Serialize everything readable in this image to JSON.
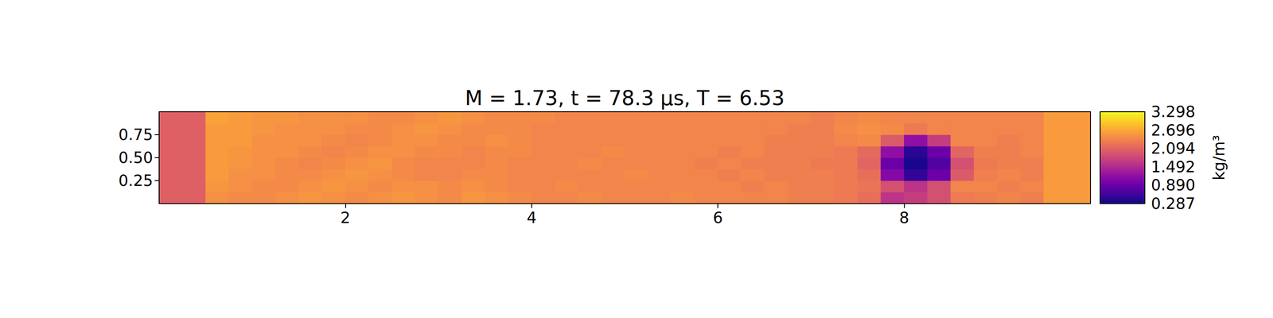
{
  "chart_data": {
    "type": "heatmap",
    "title": "M = 1.73, t = 78.3 μs, T = 6.53",
    "x": [
      0.125,
      0.375,
      0.625,
      0.875,
      1.125,
      1.375,
      1.625,
      1.875,
      2.125,
      2.375,
      2.625,
      2.875,
      3.125,
      3.375,
      3.625,
      3.875,
      4.125,
      4.375,
      4.625,
      4.875,
      5.125,
      5.375,
      5.625,
      5.875,
      6.125,
      6.375,
      6.625,
      6.875,
      7.125,
      7.375,
      7.625,
      7.875,
      8.125,
      8.375,
      8.625,
      8.875,
      9.125,
      9.375,
      9.625,
      9.875
    ],
    "y": [
      0.0625,
      0.1875,
      0.3125,
      0.4375,
      0.5625,
      0.6875,
      0.8125,
      0.9375
    ],
    "values": [
      [
        2.05,
        2.05,
        2.5,
        2.45,
        2.45,
        2.5,
        2.55,
        2.5,
        2.45,
        2.5,
        2.55,
        2.5,
        2.45,
        2.55,
        2.5,
        2.45,
        2.4,
        2.4,
        2.45,
        2.4,
        2.4,
        2.4,
        2.45,
        2.4,
        2.4,
        2.4,
        2.4,
        2.35,
        2.35,
        2.3,
        2.2,
        1.6,
        1.7,
        1.9,
        2.3,
        2.35,
        2.4,
        2.35,
        2.6,
        2.6
      ],
      [
        2.05,
        2.05,
        2.55,
        2.5,
        2.45,
        2.45,
        2.5,
        2.55,
        2.5,
        2.45,
        2.5,
        2.5,
        2.45,
        2.5,
        2.45,
        2.4,
        2.4,
        2.45,
        2.4,
        2.4,
        2.4,
        2.4,
        2.4,
        2.4,
        2.4,
        2.35,
        2.4,
        2.35,
        2.35,
        2.3,
        2.25,
        1.9,
        1.6,
        1.9,
        2.4,
        2.4,
        2.35,
        2.4,
        2.6,
        2.6
      ],
      [
        2.05,
        2.05,
        2.6,
        2.5,
        2.5,
        2.45,
        2.45,
        2.5,
        2.55,
        2.5,
        2.45,
        2.4,
        2.4,
        2.45,
        2.45,
        2.4,
        2.4,
        2.4,
        2.4,
        2.4,
        2.45,
        2.4,
        2.4,
        2.4,
        2.35,
        2.4,
        2.35,
        2.35,
        2.35,
        2.3,
        2.2,
        1.1,
        0.5,
        0.9,
        2.0,
        2.35,
        2.4,
        2.35,
        2.6,
        2.6
      ],
      [
        2.05,
        2.05,
        2.6,
        2.55,
        2.5,
        2.45,
        2.4,
        2.45,
        2.5,
        2.55,
        2.45,
        2.4,
        2.4,
        2.4,
        2.45,
        2.4,
        2.4,
        2.4,
        2.45,
        2.4,
        2.4,
        2.4,
        2.4,
        2.35,
        2.4,
        2.35,
        2.35,
        2.35,
        2.3,
        2.3,
        2.1,
        0.9,
        0.35,
        0.7,
        1.9,
        2.3,
        2.35,
        2.35,
        2.6,
        2.6
      ],
      [
        2.05,
        2.05,
        2.6,
        2.55,
        2.5,
        2.5,
        2.45,
        2.4,
        2.45,
        2.5,
        2.5,
        2.45,
        2.45,
        2.4,
        2.45,
        2.45,
        2.4,
        2.4,
        2.4,
        2.45,
        2.4,
        2.4,
        2.4,
        2.4,
        2.35,
        2.4,
        2.35,
        2.35,
        2.35,
        2.3,
        2.15,
        1.2,
        0.45,
        0.9,
        2.1,
        2.35,
        2.35,
        2.4,
        2.6,
        2.6
      ],
      [
        2.05,
        2.05,
        2.6,
        2.6,
        2.5,
        2.5,
        2.5,
        2.45,
        2.4,
        2.45,
        2.5,
        2.5,
        2.45,
        2.45,
        2.5,
        2.45,
        2.4,
        2.4,
        2.4,
        2.4,
        2.4,
        2.4,
        2.4,
        2.4,
        2.4,
        2.4,
        2.35,
        2.35,
        2.35,
        2.4,
        2.45,
        2.0,
        1.2,
        1.7,
        2.4,
        2.4,
        2.35,
        2.4,
        2.6,
        2.6
      ],
      [
        2.05,
        2.05,
        2.6,
        2.6,
        2.55,
        2.5,
        2.5,
        2.5,
        2.45,
        2.45,
        2.5,
        2.55,
        2.5,
        2.45,
        2.45,
        2.45,
        2.4,
        2.4,
        2.4,
        2.4,
        2.4,
        2.4,
        2.4,
        2.4,
        2.4,
        2.4,
        2.4,
        2.35,
        2.35,
        2.45,
        2.5,
        2.45,
        2.3,
        2.4,
        2.4,
        2.4,
        2.4,
        2.4,
        2.6,
        2.6
      ],
      [
        2.05,
        2.05,
        2.65,
        2.6,
        2.55,
        2.55,
        2.5,
        2.5,
        2.5,
        2.45,
        2.45,
        2.5,
        2.55,
        2.5,
        2.45,
        2.45,
        2.45,
        2.4,
        2.4,
        2.4,
        2.4,
        2.4,
        2.4,
        2.4,
        2.4,
        2.4,
        2.4,
        2.4,
        2.35,
        2.4,
        2.45,
        2.4,
        2.4,
        2.4,
        2.4,
        2.4,
        2.4,
        2.4,
        2.6,
        2.6
      ]
    ],
    "xlim": [
      0,
      10
    ],
    "xticks": [
      2,
      4,
      6,
      8
    ],
    "ylim": [
      0,
      1
    ],
    "yticks": [
      0.25,
      {
        "value": 0.5,
        "label": "0.50"
      },
      0.75
    ],
    "colorbar": {
      "range": [
        0.287,
        3.298
      ],
      "ticks": [
        0.287,
        {
          "value": 0.89,
          "label": "0.890"
        },
        1.492,
        2.094,
        2.696,
        3.298
      ],
      "label": "kg/m³"
    }
  }
}
